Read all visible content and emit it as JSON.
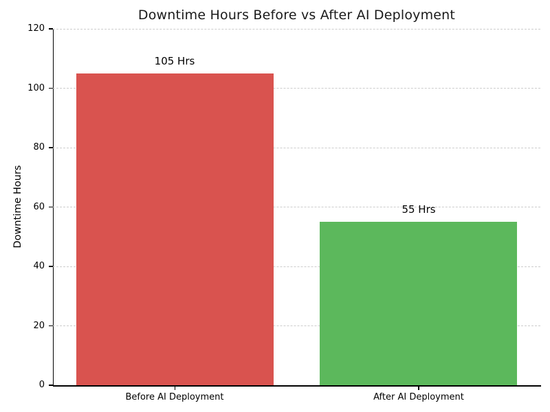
{
  "chart_data": {
    "type": "bar",
    "title": "Downtime Hours Before vs After AI Deployment",
    "categories": [
      "Before AI Deployment",
      "After AI Deployment"
    ],
    "values": [
      105,
      55
    ],
    "value_labels": [
      "105 Hrs",
      "55 Hrs"
    ],
    "bar_colors": [
      "#d9534f",
      "#5cb85c"
    ],
    "xlabel": "",
    "ylabel": "Downtime Hours",
    "ylim": [
      0,
      120
    ],
    "yticks": [
      0,
      20,
      40,
      60,
      80,
      100,
      120
    ],
    "grid": "horizontal-dashed",
    "grid_color": "#cccccc",
    "spine_color": "#000000",
    "background_color": "#ffffff",
    "legend_position": "none"
  }
}
